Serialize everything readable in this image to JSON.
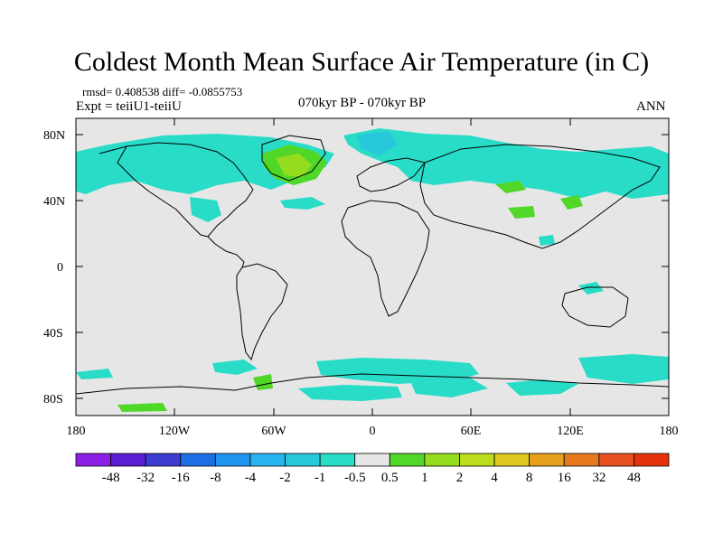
{
  "title": "Coldest Month Mean Surface Air Temperature (in C)",
  "stats_line": "rmsd= 0.408538 diff= -0.0855753",
  "experiment": "Expt = teiiU1-teiiU",
  "period": "070kyr BP - 070kyr BP",
  "season": "ANN",
  "lat_ticks": [
    "80N",
    "40N",
    "0",
    "40S",
    "80S"
  ],
  "lon_ticks": [
    "180",
    "120W",
    "60W",
    "0",
    "60E",
    "120E",
    "180"
  ],
  "colorbar": {
    "labels": [
      "-48",
      "-32",
      "-16",
      "-8",
      "-4",
      "-2",
      "-1",
      "-0.5",
      "0.5",
      "1",
      "2",
      "4",
      "8",
      "16",
      "32",
      "48"
    ],
    "colors": [
      "#8c1ee6",
      "#5a1ed2",
      "#3c3cd2",
      "#1e6ee6",
      "#1e96f0",
      "#28b4f0",
      "#28c8dc",
      "#28dcc8",
      "#e6e6e6",
      "#50d728",
      "#96dc1e",
      "#bedc1e",
      "#dcc81e",
      "#e6a01e",
      "#e6781e",
      "#e6501e",
      "#e6320a"
    ]
  },
  "map_colors": {
    "background": "#e6e6e6",
    "cool": "#28dcc8",
    "cooler": "#28c8dc",
    "warm": "#50d728",
    "warmer": "#96dc1e",
    "coast": "#000000"
  }
}
